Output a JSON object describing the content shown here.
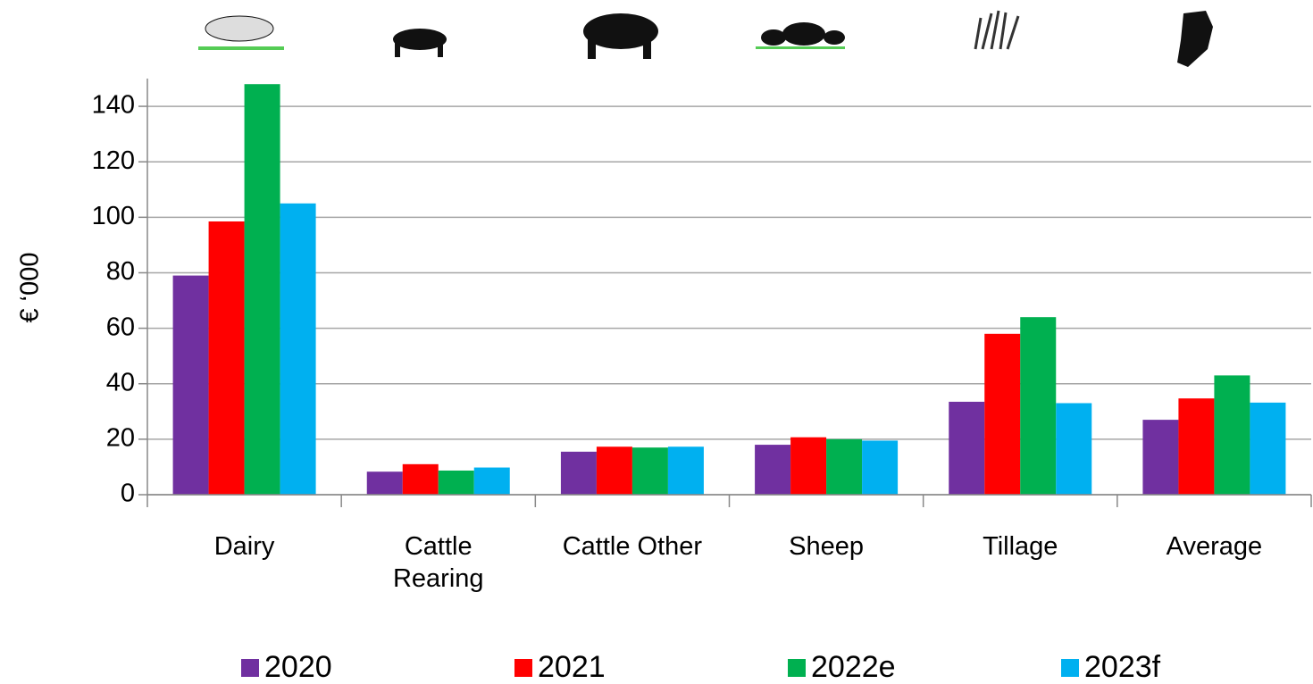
{
  "chart_data": {
    "type": "bar",
    "y_label": "€ ‘000",
    "categories": [
      "Dairy",
      "Cattle\nRearing",
      "Cattle Other",
      "Sheep",
      "Tillage",
      "Average"
    ],
    "series": [
      {
        "name": "2020",
        "color": "#7030a0",
        "values": [
          79,
          8.3,
          15.5,
          18,
          33.5,
          27
        ]
      },
      {
        "name": "2021",
        "color": "#ff0000",
        "values": [
          98.5,
          11,
          17.3,
          20.7,
          58,
          34.7
        ]
      },
      {
        "name": "2022e",
        "color": "#00b050",
        "values": [
          148,
          8.7,
          17,
          20,
          64,
          43
        ]
      },
      {
        "name": "2023f",
        "color": "#00b0f0",
        "values": [
          105,
          9.8,
          17.3,
          19.5,
          33,
          33.2
        ]
      }
    ],
    "ylim": [
      0,
      150
    ],
    "yticks": [
      0,
      20,
      40,
      60,
      80,
      100,
      120,
      140
    ],
    "grid": true
  }
}
